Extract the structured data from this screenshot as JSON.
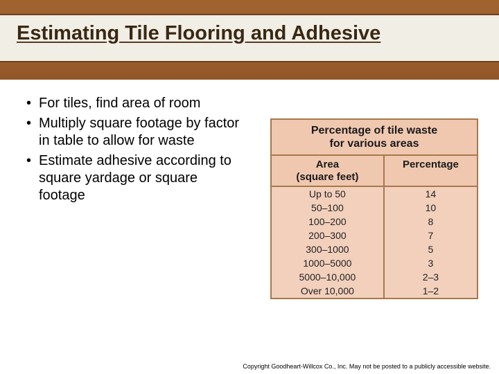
{
  "slide": {
    "title": "Estimating Tile Flooring and Adhesive",
    "bullets": [
      "For tiles, find area of room",
      "Multiply square footage by factor in table to allow for waste",
      "Estimate adhesive according to square yardage or square footage"
    ],
    "table": {
      "title_line1": "Percentage of tile waste",
      "title_line2": "for various areas",
      "col1_line1": "Area",
      "col1_line2": "(square feet)",
      "col2": "Percentage",
      "rows": [
        {
          "area": "Up to 50",
          "pct": "14"
        },
        {
          "area": "50–100",
          "pct": "10"
        },
        {
          "area": "100–200",
          "pct": "8"
        },
        {
          "area": "200–300",
          "pct": "7"
        },
        {
          "area": "300–1000",
          "pct": "5"
        },
        {
          "area": "1000–5000",
          "pct": "3"
        },
        {
          "area": "5000–10,000",
          "pct": "2–3"
        },
        {
          "area": "Over 10,000",
          "pct": "1–2"
        }
      ]
    },
    "footer": "Copyright Goodheart-Willcox Co., Inc. May not be posted to a publicly accessible website."
  },
  "styling": {
    "header_bg": "#f5f5f0",
    "title_color": "#3a2812",
    "table_header_bg": "#f0c8b0",
    "table_body_bg": "#f2d0bc",
    "table_border": "#a67848",
    "title_fontsize": 29,
    "bullet_fontsize": 20,
    "table_title_fontsize": 16,
    "table_cell_fontsize": 14
  }
}
